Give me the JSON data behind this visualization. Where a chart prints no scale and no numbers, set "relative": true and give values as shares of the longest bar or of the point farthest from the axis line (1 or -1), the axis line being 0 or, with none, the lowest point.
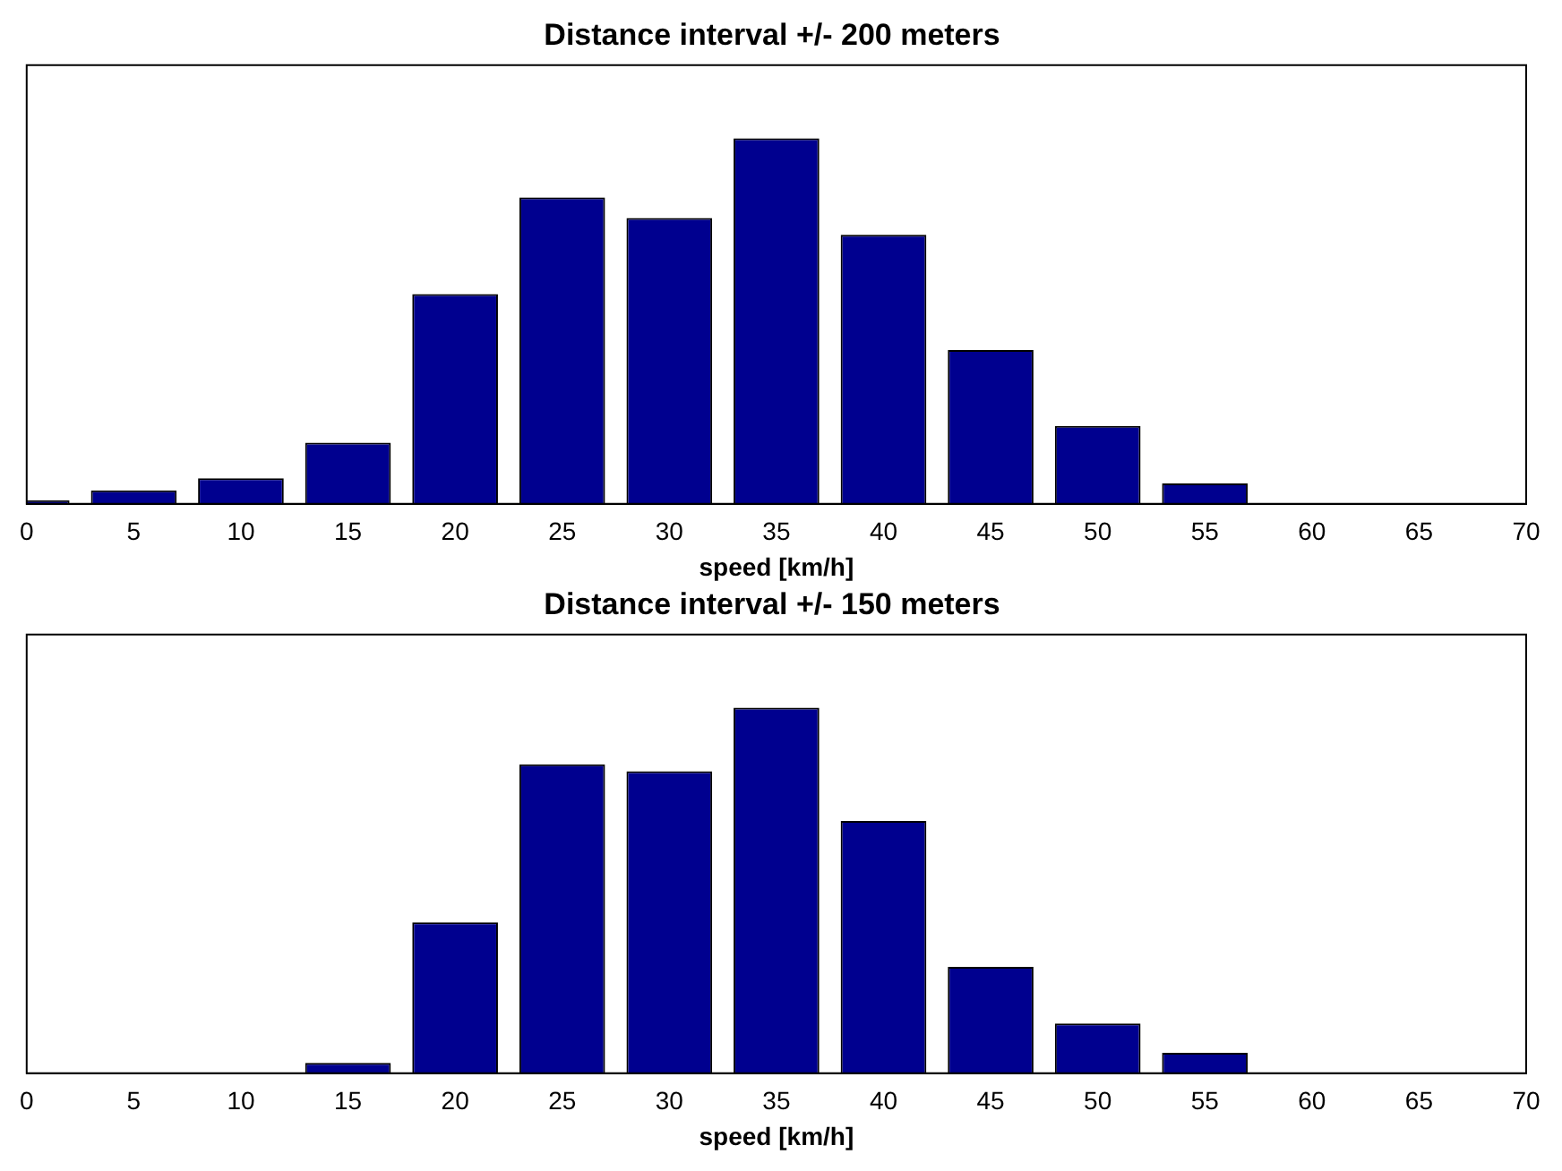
{
  "chart_data": [
    {
      "type": "bar",
      "title": "Distance interval +/- 200 meters",
      "xlabel": "speed [km/h]",
      "relative": true,
      "x": [
        0,
        5,
        10,
        15,
        20,
        25,
        30,
        35,
        40,
        45,
        50,
        55,
        60,
        65,
        70
      ],
      "values": [
        0.01,
        0.037,
        0.07,
        0.167,
        0.574,
        0.838,
        0.782,
        1,
        0.736,
        0.421,
        0.213,
        0.056,
        0,
        0,
        0
      ],
      "color": "#00008f",
      "xlim": [
        0,
        70
      ],
      "xticks": [
        0,
        5,
        10,
        15,
        20,
        25,
        30,
        35,
        40,
        45,
        50,
        55,
        60,
        65,
        70
      ],
      "grid": false,
      "legend": false
    },
    {
      "type": "bar",
      "title": "Distance interval +/- 150 meters",
      "xlabel": "speed [km/h]",
      "relative": true,
      "x": [
        0,
        5,
        10,
        15,
        20,
        25,
        30,
        35,
        40,
        45,
        50,
        55,
        60,
        65,
        70
      ],
      "values": [
        0,
        0,
        0,
        0.028,
        0.413,
        0.845,
        0.826,
        1,
        0.69,
        0.291,
        0.136,
        0.056,
        0,
        0,
        0
      ],
      "color": "#00008f",
      "xlim": [
        0,
        70
      ],
      "xticks": [
        0,
        5,
        10,
        15,
        20,
        25,
        30,
        35,
        40,
        45,
        50,
        55,
        60,
        65,
        70
      ],
      "grid": false,
      "legend": false
    }
  ]
}
